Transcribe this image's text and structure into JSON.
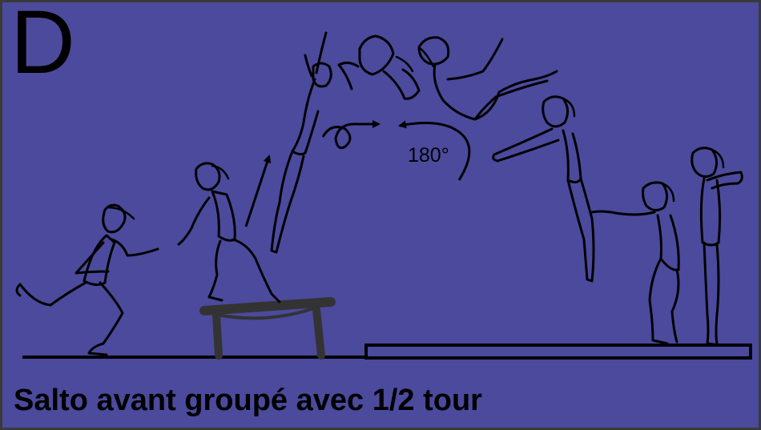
{
  "card": {
    "letter": "D",
    "caption": "Salto avant groupé avec 1/2 tour",
    "rotation_label": "180°"
  },
  "colors": {
    "background": "#4b4a9d",
    "ink": "#000000",
    "springboard": "#333333"
  },
  "icons": {
    "run_up": "gymnast-running-icon",
    "takeoff": "gymnast-springboard-icon",
    "flight": "gymnast-salto-tucked-icon",
    "landing": "gymnast-landing-icon"
  }
}
